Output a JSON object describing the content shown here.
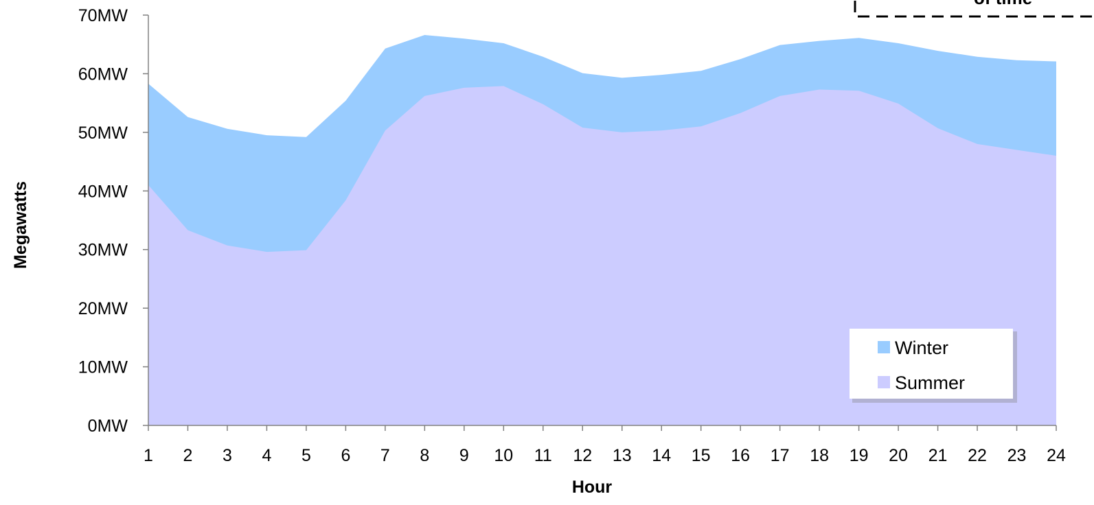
{
  "chart_data": {
    "type": "area",
    "title": "",
    "xlabel": "Hour",
    "ylabel": "Megawatts",
    "x": [
      1,
      2,
      3,
      4,
      5,
      6,
      7,
      8,
      9,
      10,
      11,
      12,
      13,
      14,
      15,
      16,
      17,
      18,
      19,
      20,
      21,
      22,
      23,
      24
    ],
    "x_tick_labels": [
      "1",
      "2",
      "3",
      "4",
      "5",
      "6",
      "7",
      "8",
      "9",
      "10",
      "11",
      "12",
      "13",
      "14",
      "15",
      "16",
      "17",
      "18",
      "19",
      "20",
      "21",
      "22",
      "23",
      "24"
    ],
    "ylim": [
      0,
      70
    ],
    "y_ticks": [
      0,
      10,
      20,
      30,
      40,
      50,
      60,
      70
    ],
    "y_tick_labels": [
      "0MW",
      "10MW",
      "20MW",
      "30MW",
      "40MW",
      "50MW",
      "60MW",
      "70MW"
    ],
    "grid": false,
    "legend_position": "bottom-right",
    "series": [
      {
        "name": "Winter",
        "color": "#99ccff",
        "values": [
          58.3,
          52.6,
          50.6,
          49.5,
          49.2,
          55.4,
          64.3,
          66.6,
          66.0,
          65.2,
          62.9,
          60.1,
          59.3,
          59.8,
          60.5,
          62.5,
          64.9,
          65.6,
          66.1,
          65.2,
          63.9,
          62.9,
          62.3,
          62.1
        ]
      },
      {
        "name": "Summer",
        "color": "#ccccff",
        "values": [
          41.0,
          33.3,
          30.7,
          29.6,
          29.9,
          38.4,
          50.3,
          56.2,
          57.6,
          57.9,
          54.8,
          50.8,
          50.0,
          50.3,
          51.0,
          53.3,
          56.2,
          57.3,
          57.1,
          54.9,
          50.7,
          48.0,
          47.0,
          46.0
        ]
      }
    ],
    "annotation": {
      "text": "of time",
      "border": "dashed"
    }
  }
}
